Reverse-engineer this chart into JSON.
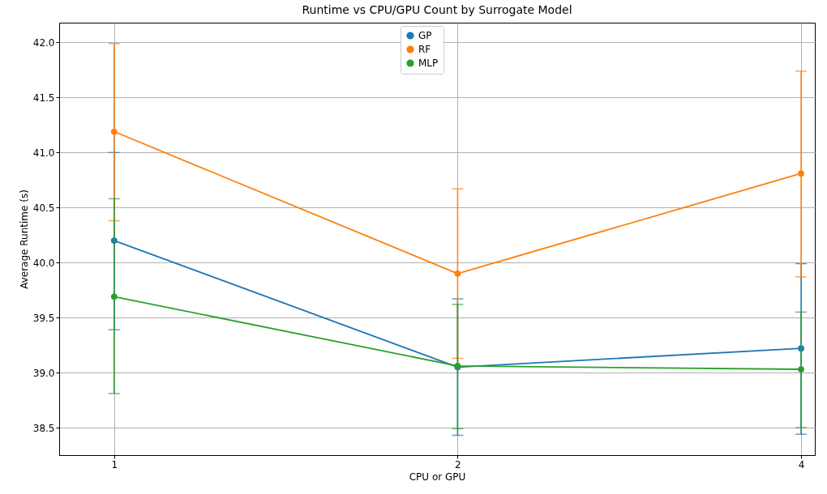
{
  "chart_data": {
    "type": "line",
    "title": "Runtime vs CPU/GPU Count by Surrogate Model",
    "xlabel": "CPU or GPU",
    "ylabel": "Average Runtime (s)",
    "categories": [
      "1",
      "2",
      "4"
    ],
    "series": [
      {
        "name": "GP",
        "color": "#1f77b4",
        "values": [
          40.2,
          39.05,
          39.22
        ],
        "errors": [
          [
            39.39,
            41.0
          ],
          [
            38.43,
            39.67
          ],
          [
            38.44,
            39.99
          ]
        ]
      },
      {
        "name": "RF",
        "color": "#ff7f0e",
        "values": [
          41.19,
          39.9,
          40.81
        ],
        "errors": [
          [
            40.38,
            41.99
          ],
          [
            39.13,
            40.67
          ],
          [
            39.87,
            41.74
          ]
        ]
      },
      {
        "name": "MLP",
        "color": "#2ca02c",
        "values": [
          39.69,
          39.06,
          39.03
        ],
        "errors": [
          [
            38.81,
            40.58
          ],
          [
            38.49,
            39.62
          ],
          [
            38.5,
            39.55
          ]
        ]
      }
    ],
    "ylim": [
      38.25,
      42.18
    ],
    "yticks": [
      38.5,
      {
        "value": 39,
        "label": "39.0"
      },
      39.5,
      {
        "value": 40,
        "label": "40.0"
      },
      40.5,
      {
        "value": 41,
        "label": "41.0"
      },
      41.5,
      {
        "value": 42,
        "label": "42.0"
      }
    ],
    "grid": true,
    "legend": "top",
    "marker": "circle",
    "line_style": "solid"
  }
}
